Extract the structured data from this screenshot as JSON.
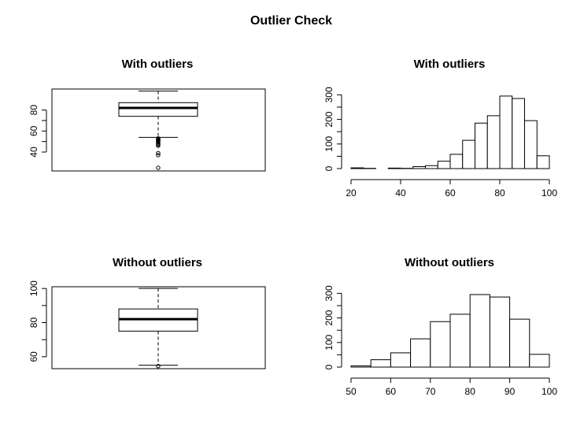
{
  "figure": {
    "title": "Outlier Check"
  },
  "chart_data": [
    {
      "type": "boxplot",
      "title": "With outliers",
      "xlabel": "",
      "ylabel": "",
      "ylim": [
        22,
        100
      ],
      "yticks": [
        40,
        60,
        80
      ],
      "stats": {
        "lower_whisker": 54,
        "q1": 74,
        "median": 82,
        "q3": 87,
        "upper_whisker": 98
      },
      "outliers": [
        53,
        52.5,
        52,
        51.5,
        51,
        50.5,
        50,
        49.5,
        49,
        48,
        47,
        46,
        39,
        37,
        25
      ]
    },
    {
      "type": "histogram",
      "title": "With outliers",
      "xlabel": "",
      "ylabel": "",
      "xlim": [
        20,
        100
      ],
      "ylim": [
        0,
        330
      ],
      "xticks": [
        20,
        40,
        60,
        80,
        100
      ],
      "yticks": [
        0,
        100,
        200,
        300
      ],
      "bins": [
        20,
        25,
        30,
        35,
        40,
        45,
        50,
        55,
        60,
        65,
        70,
        75,
        80,
        85,
        90,
        95,
        100
      ],
      "counts": [
        3,
        1,
        0,
        2,
        1,
        8,
        12,
        30,
        58,
        115,
        185,
        215,
        295,
        285,
        195,
        52
      ]
    },
    {
      "type": "boxplot",
      "title": "Without outliers",
      "xlabel": "",
      "ylabel": "",
      "ylim": [
        53,
        101
      ],
      "yticks": [
        60,
        80,
        100
      ],
      "stats": {
        "lower_whisker": 55,
        "q1": 75,
        "median": 82,
        "q3": 88,
        "upper_whisker": 100
      },
      "outliers": [
        54.5
      ]
    },
    {
      "type": "histogram",
      "title": "Without outliers",
      "xlabel": "",
      "ylabel": "",
      "xlim": [
        50,
        100
      ],
      "ylim": [
        0,
        330
      ],
      "xticks": [
        50,
        60,
        70,
        80,
        90,
        100
      ],
      "yticks": [
        0,
        100,
        200,
        300
      ],
      "bins": [
        50,
        55,
        60,
        65,
        70,
        75,
        80,
        85,
        90,
        95,
        100
      ],
      "counts": [
        5,
        30,
        58,
        115,
        185,
        215,
        295,
        285,
        195,
        52
      ]
    }
  ]
}
